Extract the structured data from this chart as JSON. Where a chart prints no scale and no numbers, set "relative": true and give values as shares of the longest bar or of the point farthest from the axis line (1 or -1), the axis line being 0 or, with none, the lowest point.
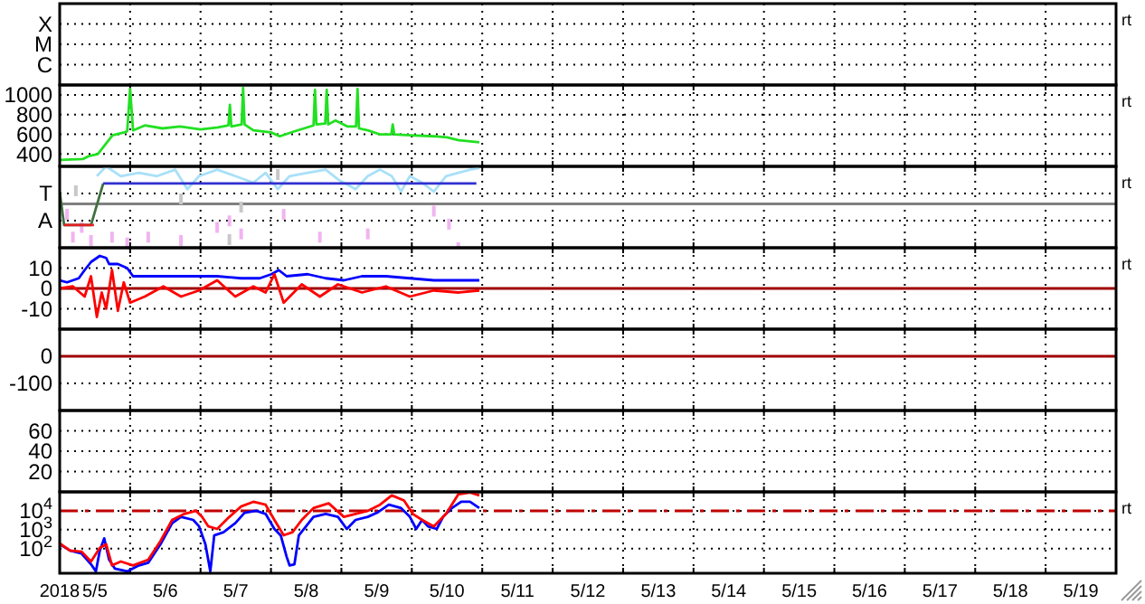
{
  "chart_data": [
    {
      "type": "other",
      "annotations": [
        "rt",
        "X",
        "M",
        "C"
      ]
    },
    {
      "type": "line",
      "ylim": [
        275,
        1100
      ],
      "yticks": [
        1000,
        800,
        600,
        400
      ],
      "xlim": [
        "2018-05-05",
        "2018-05-20"
      ],
      "xticks": [
        {
          "value": "2018-05-06",
          "label": null
        },
        {
          "value": "2018-05-07",
          "label": null
        },
        {
          "value": "2018-05-08",
          "label": null
        },
        {
          "value": "2018-05-09",
          "label": null
        },
        {
          "value": "2018-05-10",
          "label": null
        },
        {
          "value": "2018-05-11",
          "label": null
        },
        {
          "value": "2018-05-12",
          "label": null
        },
        {
          "value": "2018-05-13",
          "label": null
        },
        {
          "value": "2018-05-14",
          "label": null
        },
        {
          "value": "2018-05-15",
          "label": null
        },
        {
          "value": "2018-05-16",
          "label": null
        },
        {
          "value": "2018-05-17",
          "label": null
        },
        {
          "value": "2018-05-18",
          "label": null
        },
        {
          "value": "2018-05-19",
          "label": null
        }
      ],
      "tick_labels": "y",
      "grid": true,
      "annotations": [
        "rt"
      ],
      "series": [
        {
          "color": "#22e022",
          "x": [
            "2018-05-05T00:00",
            "2018-05-05T08:00",
            "2018-05-05T10:00",
            "2018-05-05T13:00",
            "2018-05-05T18:00",
            "2018-05-05T22:00",
            "2018-05-05T23:00",
            "2018-05-06T00:00",
            "2018-05-06T01:00",
            "2018-05-06T05:00",
            "2018-05-06T11:00",
            "2018-05-06T17:00",
            "2018-05-07T00:00",
            "2018-05-07T06:00",
            "2018-05-07T09:30",
            "2018-05-07T10:00",
            "2018-05-07T10:30",
            "2018-05-07T14:00",
            "2018-05-07T14:30",
            "2018-05-07T15:00",
            "2018-05-07T18:00",
            "2018-05-08T00:00",
            "2018-05-08T03:00",
            "2018-05-08T08:00",
            "2018-05-08T14:30",
            "2018-05-08T15:00",
            "2018-05-08T15:30",
            "2018-05-08T18:30",
            "2018-05-08T19:00",
            "2018-05-08T19:30",
            "2018-05-08T22:00",
            "2018-05-09T02:00",
            "2018-05-09T05:00",
            "2018-05-09T05:30",
            "2018-05-09T06:00",
            "2018-05-09T09:00",
            "2018-05-09T13:00",
            "2018-05-09T17:00",
            "2018-05-09T17:30",
            "2018-05-09T18:00",
            "2018-05-09T23:30",
            "2018-05-10T07:40",
            "2018-05-10T12:00",
            "2018-05-10T16:00",
            "2018-05-10T23:00"
          ],
          "values": [
            340,
            350,
            380,
            400,
            590,
            620,
            630,
            1060,
            640,
            690,
            660,
            680,
            650,
            670,
            690,
            900,
            680,
            700,
            1070,
            700,
            640,
            620,
            580,
            630,
            690,
            1050,
            700,
            710,
            1050,
            700,
            740,
            680,
            680,
            1060,
            660,
            640,
            600,
            600,
            700,
            600,
            590,
            580,
            570,
            540,
            520
          ]
        }
      ]
    },
    {
      "type": "line",
      "relative": true,
      "xlim": [
        "2018-05-05",
        "2018-05-20"
      ],
      "xticks": [
        {
          "value": "2018-05-06",
          "label": null
        },
        {
          "value": "2018-05-07",
          "label": null
        },
        {
          "value": "2018-05-08",
          "label": null
        },
        {
          "value": "2018-05-09",
          "label": null
        },
        {
          "value": "2018-05-10",
          "label": null
        },
        {
          "value": "2018-05-11",
          "label": null
        },
        {
          "value": "2018-05-12",
          "label": null
        },
        {
          "value": "2018-05-13",
          "label": null
        },
        {
          "value": "2018-05-14",
          "label": null
        },
        {
          "value": "2018-05-15",
          "label": null
        },
        {
          "value": "2018-05-16",
          "label": null
        },
        {
          "value": "2018-05-17",
          "label": null
        },
        {
          "value": "2018-05-18",
          "label": null
        },
        {
          "value": "2018-05-19",
          "label": null
        }
      ],
      "tick_labels": "y",
      "grid": true,
      "annotations": [
        "rt",
        "T",
        "A"
      ],
      "ref_lines": [
        {
          "axis": "y",
          "value": 0.54,
          "color": "#808080"
        }
      ],
      "series": [
        {
          "type": "scatter",
          "color": "#c8c8c8",
          "x": [
            "2018-05-05T05:30",
            "2018-05-06T17:20",
            "2018-05-07T09:50",
            "2018-05-07T13:50",
            "2018-05-08T02:20"
          ],
          "values": [
            0.7,
            0.6,
            0.1,
            0.5,
            0.9
          ]
        },
        {
          "type": "line",
          "color": "#a8e0f8",
          "x": [
            "2018-05-05T12:40",
            "2018-05-05T15:50",
            "2018-05-05T20:50",
            "2018-05-06T03:00",
            "2018-05-06T09:10",
            "2018-05-06T15:20",
            "2018-05-06T19:30",
            "2018-05-06T23:30",
            "2018-05-07T05:40",
            "2018-05-07T11:50",
            "2018-05-07T18:00",
            "2018-05-07T22:10",
            "2018-05-08T02:20",
            "2018-05-08T06:20",
            "2018-05-08T12:30",
            "2018-05-08T18:40",
            "2018-05-08T22:50",
            "2018-05-09T04:50",
            "2018-05-09T09:00",
            "2018-05-09T13:10",
            "2018-05-09T17:10",
            "2018-05-09T20:20",
            "2018-05-09T23:20",
            "2018-05-10T03:30",
            "2018-05-10T07:30",
            "2018-05-10T11:40",
            "2018-05-10T15:50",
            "2018-05-10T19:50",
            "2018-05-10T23:00"
          ],
          "values": [
            0.88,
            1,
            0.88,
            0.92,
            0.88,
            0.96,
            0.72,
            0.88,
            0.96,
            0.88,
            0.8,
            0.92,
            0.72,
            0.88,
            0.92,
            0.96,
            0.84,
            0.72,
            0.88,
            0.96,
            0.88,
            0.69,
            0.88,
            0.8,
            0.69,
            0.88,
            0.92,
            0.96,
            0.98
          ]
        },
        {
          "type": "scatter",
          "color": "#f0b4f0",
          "x": [
            "2018-05-05T02:30",
            "2018-05-05T04:30",
            "2018-05-05T07:30",
            "2018-05-05T10:40",
            "2018-05-05T17:50",
            "2018-05-05T23:00",
            "2018-05-06T06:10",
            "2018-05-06T17:20",
            "2018-05-07T05:40",
            "2018-05-07T09:50",
            "2018-05-07T13:50",
            "2018-05-08T04:20",
            "2018-05-08T16:40",
            "2018-05-09T09:00",
            "2018-05-10T07:30",
            "2018-05-10T12:40",
            "2018-05-10T15:50"
          ],
          "values": [
            0.41,
            0.13,
            0.25,
            0.09,
            0.13,
            0.06,
            0.13,
            0.09,
            0.25,
            0.33,
            0.17,
            0.41,
            0.13,
            0.17,
            0.45,
            0.29,
            0
          ]
        },
        {
          "type": "line",
          "color": "#407040",
          "x": [
            "2018-05-05T00:00",
            "2018-05-05T01:30",
            "2018-05-05T10:40",
            "2018-05-05T14:50"
          ],
          "values": [
            0.69,
            0.28,
            0.28,
            0.79
          ]
        },
        {
          "type": "line",
          "color": "#e02020",
          "x": [
            "2018-05-05T01:30",
            "2018-05-05T11:40"
          ],
          "values": [
            0.28,
            0.28
          ]
        },
        {
          "type": "line",
          "color": "#3030d0",
          "x": [
            "2018-05-05T14:50",
            "2018-05-10T22:00"
          ],
          "values": [
            0.79,
            0.79
          ]
        }
      ]
    },
    {
      "type": "line",
      "ylim": [
        -20,
        20
      ],
      "yticks": [
        10,
        0,
        -10
      ],
      "xlim": [
        "2018-05-05",
        "2018-05-20"
      ],
      "xticks": [
        {
          "value": "2018-05-06",
          "label": null
        },
        {
          "value": "2018-05-07",
          "label": null
        },
        {
          "value": "2018-05-08",
          "label": null
        },
        {
          "value": "2018-05-09",
          "label": null
        },
        {
          "value": "2018-05-10",
          "label": null
        },
        {
          "value": "2018-05-11",
          "label": null
        },
        {
          "value": "2018-05-12",
          "label": null
        },
        {
          "value": "2018-05-13",
          "label": null
        },
        {
          "value": "2018-05-14",
          "label": null
        },
        {
          "value": "2018-05-15",
          "label": null
        },
        {
          "value": "2018-05-16",
          "label": null
        },
        {
          "value": "2018-05-17",
          "label": null
        },
        {
          "value": "2018-05-18",
          "label": null
        },
        {
          "value": "2018-05-19",
          "label": null
        }
      ],
      "tick_labels": "y",
      "grid": true,
      "annotations": [
        "rt"
      ],
      "ref_lines": [
        {
          "axis": "y",
          "value": 0,
          "color": "#a00000"
        }
      ],
      "series": [
        {
          "color": "#0000ff",
          "x": [
            "2018-05-05T00:00",
            "2018-05-05T02:30",
            "2018-05-05T06:30",
            "2018-05-05T08:30",
            "2018-05-05T10:40",
            "2018-05-05T13:40",
            "2018-05-05T15:50",
            "2018-05-05T16:50",
            "2018-05-05T19:50",
            "2018-05-05T23:00",
            "2018-05-06T01:00",
            "2018-05-06T09:10",
            "2018-05-06T17:20",
            "2018-05-06T23:30",
            "2018-05-07T05:40",
            "2018-05-07T13:50",
            "2018-05-07T20:10",
            "2018-05-08T00:10",
            "2018-05-08T02:40",
            "2018-05-08T05:20",
            "2018-05-08T12:30",
            "2018-05-08T18:40",
            "2018-05-09T00:50",
            "2018-05-09T07:00",
            "2018-05-09T15:10",
            "2018-05-09T23:20",
            "2018-05-10T07:30",
            "2018-05-10T15:50",
            "2018-05-10T23:00"
          ],
          "values": [
            4,
            3,
            5,
            9,
            13,
            16,
            15,
            12,
            12,
            10,
            6,
            6,
            6,
            6,
            6,
            5,
            5,
            7,
            9,
            6,
            7,
            5,
            4,
            6,
            6,
            5,
            4,
            4,
            4
          ]
        },
        {
          "color": "#ff0000",
          "x": [
            "2018-05-05T00:00",
            "2018-05-05T04:30",
            "2018-05-05T08:30",
            "2018-05-05T10:40",
            "2018-05-05T12:40",
            "2018-05-05T14:20",
            "2018-05-05T15:50",
            "2018-05-05T17:50",
            "2018-05-05T19:50",
            "2018-05-05T21:50",
            "2018-05-06T00:00",
            "2018-05-06T05:00",
            "2018-05-06T11:20",
            "2018-05-06T17:20",
            "2018-05-06T23:30",
            "2018-05-07T05:40",
            "2018-05-07T11:50",
            "2018-05-07T18:00",
            "2018-05-07T22:10",
            "2018-05-08T01:10",
            "2018-05-08T04:20",
            "2018-05-08T10:30",
            "2018-05-08T16:40",
            "2018-05-08T22:50",
            "2018-05-09T07:00",
            "2018-05-09T15:10",
            "2018-05-09T23:20",
            "2018-05-10T07:30",
            "2018-05-10T15:50",
            "2018-05-10T23:00"
          ],
          "values": [
            0,
            1,
            -4,
            6,
            -14,
            -2,
            -10,
            9,
            -11,
            3,
            -7,
            -4,
            1,
            -4,
            -1,
            4,
            -4,
            1,
            -2,
            7,
            -7,
            2,
            -4,
            2,
            -2,
            1,
            -4,
            -1,
            -2,
            -1
          ]
        }
      ]
    },
    {
      "type": "line",
      "ylim": [
        -200,
        100
      ],
      "yticks": [
        0,
        -100
      ],
      "xlim": [
        "2018-05-05",
        "2018-05-20"
      ],
      "xticks": [
        {
          "value": "2018-05-06",
          "label": null
        },
        {
          "value": "2018-05-07",
          "label": null
        },
        {
          "value": "2018-05-08",
          "label": null
        },
        {
          "value": "2018-05-09",
          "label": null
        },
        {
          "value": "2018-05-10",
          "label": null
        },
        {
          "value": "2018-05-11",
          "label": null
        },
        {
          "value": "2018-05-12",
          "label": null
        },
        {
          "value": "2018-05-13",
          "label": null
        },
        {
          "value": "2018-05-14",
          "label": null
        },
        {
          "value": "2018-05-15",
          "label": null
        },
        {
          "value": "2018-05-16",
          "label": null
        },
        {
          "value": "2018-05-17",
          "label": null
        },
        {
          "value": "2018-05-18",
          "label": null
        },
        {
          "value": "2018-05-19",
          "label": null
        }
      ],
      "tick_labels": "y",
      "grid": true,
      "ref_lines": [
        {
          "axis": "y",
          "value": 0,
          "color": "#a00000"
        }
      ]
    },
    {
      "type": "line",
      "ylim": [
        0,
        80
      ],
      "yticks": [
        60,
        40,
        20
      ],
      "xlim": [
        "2018-05-05",
        "2018-05-20"
      ],
      "xticks": [
        {
          "value": "2018-05-06",
          "label": null
        },
        {
          "value": "2018-05-07",
          "label": null
        },
        {
          "value": "2018-05-08",
          "label": null
        },
        {
          "value": "2018-05-09",
          "label": null
        },
        {
          "value": "2018-05-10",
          "label": null
        },
        {
          "value": "2018-05-11",
          "label": null
        },
        {
          "value": "2018-05-12",
          "label": null
        },
        {
          "value": "2018-05-13",
          "label": null
        },
        {
          "value": "2018-05-14",
          "label": null
        },
        {
          "value": "2018-05-15",
          "label": null
        },
        {
          "value": "2018-05-16",
          "label": null
        },
        {
          "value": "2018-05-17",
          "label": null
        },
        {
          "value": "2018-05-18",
          "label": null
        },
        {
          "value": "2018-05-19",
          "label": null
        }
      ],
      "tick_labels": "y",
      "grid": true
    },
    {
      "type": "line",
      "log": true,
      "ylim": [
        5,
        100000
      ],
      "yticks": [
        {
          "value": 10000,
          "label": "10$^{4}$"
        },
        {
          "value": 1000,
          "label": "10$^{3}$"
        },
        {
          "value": 100,
          "label": "10$^{2}$"
        }
      ],
      "xlim": [
        "2018-05-05",
        "2018-05-20"
      ],
      "xticks": [
        {
          "value": "2018-05-05",
          "label": "2018"
        },
        {
          "value": "2018-05-05T12:00",
          "label": "5/5"
        },
        {
          "value": "2018-05-06",
          "label": null
        },
        {
          "value": "2018-05-06T12:00",
          "label": "5/6"
        },
        {
          "value": "2018-05-07",
          "label": null
        },
        {
          "value": "2018-05-07T12:00",
          "label": "5/7"
        },
        {
          "value": "2018-05-08",
          "label": null
        },
        {
          "value": "2018-05-08T12:00",
          "label": "5/8"
        },
        {
          "value": "2018-05-09",
          "label": null
        },
        {
          "value": "2018-05-09T12:00",
          "label": "5/9"
        },
        {
          "value": "2018-05-10",
          "label": null
        },
        {
          "value": "2018-05-10T12:00",
          "label": "5/10"
        },
        {
          "value": "2018-05-11",
          "label": null
        },
        {
          "value": "2018-05-11T12:00",
          "label": "5/11"
        },
        {
          "value": "2018-05-12",
          "label": null
        },
        {
          "value": "2018-05-12T12:00",
          "label": "5/12"
        },
        {
          "value": "2018-05-13",
          "label": null
        },
        {
          "value": "2018-05-13T12:00",
          "label": "5/13"
        },
        {
          "value": "2018-05-14",
          "label": null
        },
        {
          "value": "2018-05-14T12:00",
          "label": "5/14"
        },
        {
          "value": "2018-05-15",
          "label": null
        },
        {
          "value": "2018-05-15T12:00",
          "label": "5/15"
        },
        {
          "value": "2018-05-16",
          "label": null
        },
        {
          "value": "2018-05-16T12:00",
          "label": "5/16"
        },
        {
          "value": "2018-05-17",
          "label": null
        },
        {
          "value": "2018-05-17T12:00",
          "label": "5/17"
        },
        {
          "value": "2018-05-18",
          "label": null
        },
        {
          "value": "2018-05-18T12:00",
          "label": "5/18"
        },
        {
          "value": "2018-05-19",
          "label": null
        },
        {
          "value": "2018-05-19T12:00",
          "label": "5/19"
        }
      ],
      "grid": true,
      "annotations": [
        "rt"
      ],
      "ref_lines": [
        {
          "axis": "y",
          "value": 10000,
          "color": "#c00000",
          "line_style": "dashed"
        }
      ],
      "series": [
        {
          "color": "#0000ff",
          "x": [
            "2018-05-05T00:00",
            "2018-05-05T03:30",
            "2018-05-05T07:30",
            "2018-05-05T10:40",
            "2018-05-05T12:20",
            "2018-05-05T13:40",
            "2018-05-05T15:10",
            "2018-05-05T16:50",
            "2018-05-05T18:50",
            "2018-05-05T23:00",
            "2018-05-06T03:00",
            "2018-05-06T06:10",
            "2018-05-06T10:20",
            "2018-05-06T14:20",
            "2018-05-06T17:20",
            "2018-05-06T21:30",
            "2018-05-06T23:30",
            "2018-05-07T01:40",
            "2018-05-07T03:20",
            "2018-05-07T04:40",
            "2018-05-07T07:50",
            "2018-05-07T11:50",
            "2018-05-07T15:00",
            "2018-05-07T19:00",
            "2018-05-07T22:10",
            "2018-05-08T01:10",
            "2018-05-08T03:20",
            "2018-05-08T05:20",
            "2018-05-08T06:20",
            "2018-05-08T08:00",
            "2018-05-08T09:30",
            "2018-05-08T14:30",
            "2018-05-08T18:40",
            "2018-05-08T22:50",
            "2018-05-09T01:50",
            "2018-05-09T04:50",
            "2018-05-09T09:00",
            "2018-05-09T12:10",
            "2018-05-09T16:10",
            "2018-05-09T20:20",
            "2018-05-09T23:20",
            "2018-05-10T01:30",
            "2018-05-10T03:30",
            "2018-05-10T05:30",
            "2018-05-10T08:30",
            "2018-05-10T10:40",
            "2018-05-10T13:40",
            "2018-05-10T16:50",
            "2018-05-10T19:50",
            "2018-05-10T23:00"
          ],
          "values": [
            170,
            79,
            55,
            15,
            6.3,
            79,
            350,
            26,
            8.7,
            6.3,
            13,
            18,
            170,
            2200,
            4800,
            3300,
            1500,
            170,
            6.3,
            500,
            740,
            2200,
            7900,
            10000,
            6900,
            1100,
            500,
            38,
            13,
            15,
            500,
            4800,
            6900,
            4800,
            1100,
            3300,
            4800,
            7900,
            21000,
            14000,
            4800,
            1100,
            3300,
            1500,
            1100,
            4800,
            14000,
            30000,
            30000,
            14000
          ]
        },
        {
          "color": "#ff0000",
          "x": [
            "2018-05-05T00:00",
            "2018-05-05T03:30",
            "2018-05-05T07:30",
            "2018-05-05T10:40",
            "2018-05-05T13:40",
            "2018-05-05T15:50",
            "2018-05-05T17:50",
            "2018-05-05T20:50",
            "2018-05-06T01:00",
            "2018-05-06T06:10",
            "2018-05-06T10:20",
            "2018-05-06T14:20",
            "2018-05-06T18:30",
            "2018-05-06T22:30",
            "2018-05-07T00:30",
            "2018-05-07T02:40",
            "2018-05-07T05:40",
            "2018-05-07T09:50",
            "2018-05-07T13:50",
            "2018-05-07T18:00",
            "2018-05-07T22:10",
            "2018-05-08T01:10",
            "2018-05-08T04:20",
            "2018-05-08T07:20",
            "2018-05-08T10:30",
            "2018-05-08T14:30",
            "2018-05-08T19:40",
            "2018-05-09T00:50",
            "2018-05-09T04:50",
            "2018-05-09T09:00",
            "2018-05-09T13:10",
            "2018-05-09T17:10",
            "2018-05-09T21:20",
            "2018-05-10T00:20",
            "2018-05-10T03:30",
            "2018-05-10T07:30",
            "2018-05-10T11:40",
            "2018-05-10T15:50",
            "2018-05-10T19:50",
            "2018-05-10T23:00"
          ],
          "values": [
            190,
            79,
            69,
            21,
            110,
            170,
            13,
            21,
            13,
            26,
            250,
            3300,
            6900,
            10000,
            4800,
            1500,
            1100,
            4800,
            17000,
            30000,
            21000,
            3300,
            510,
            740,
            3300,
            14000,
            25000,
            4800,
            6900,
            10000,
            21000,
            65000,
            35000,
            6900,
            3300,
            1500,
            6900,
            74000,
            93000,
            65000
          ]
        }
      ]
    }
  ]
}
